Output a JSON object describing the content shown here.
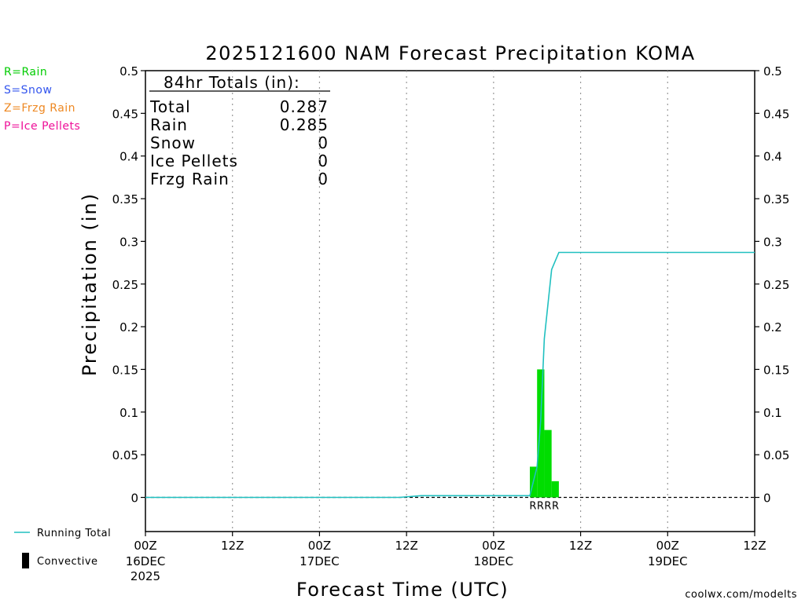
{
  "chart_data": {
    "type": "bar",
    "title": "2025121600 NAM Forecast Precipitation KOMA",
    "xlabel": "Forecast Time (UTC)",
    "ylabel": "Precipitation (in)",
    "ylim": [
      -0.04,
      0.5
    ],
    "yticks": [
      0,
      0.05,
      0.1,
      0.15,
      0.2,
      0.25,
      0.3,
      0.35,
      0.4,
      0.45,
      0.5
    ],
    "ytick_labels": [
      "0",
      "0.05",
      "0.1",
      "0.15",
      "0.2",
      "0.25",
      "0.3",
      "0.35",
      "0.4",
      "0.45",
      "0.5"
    ],
    "xlim_hours": [
      0,
      84
    ],
    "x_ticks": [
      {
        "hour": 0,
        "label": "00Z",
        "sub": "16DEC",
        "sub2": "2025"
      },
      {
        "hour": 12,
        "label": "12Z",
        "sub": "",
        "sub2": ""
      },
      {
        "hour": 24,
        "label": "00Z",
        "sub": "17DEC",
        "sub2": ""
      },
      {
        "hour": 36,
        "label": "12Z",
        "sub": "",
        "sub2": ""
      },
      {
        "hour": 48,
        "label": "00Z",
        "sub": "18DEC",
        "sub2": ""
      },
      {
        "hour": 60,
        "label": "12Z",
        "sub": "",
        "sub2": ""
      },
      {
        "hour": 72,
        "label": "00Z",
        "sub": "19DEC",
        "sub2": ""
      },
      {
        "hour": 84,
        "label": "12Z",
        "sub": "",
        "sub2": ""
      }
    ],
    "grid_hours": [
      12,
      24,
      36,
      48,
      60,
      72
    ],
    "bar_width_hours": 1,
    "bars": [
      {
        "hour": 53.5,
        "value": 0.036,
        "type": "R"
      },
      {
        "hour": 54.5,
        "value": 0.15,
        "type": "R"
      },
      {
        "hour": 55.5,
        "value": 0.079,
        "type": "R"
      },
      {
        "hour": 56.5,
        "value": 0.019,
        "type": "R"
      }
    ],
    "precip_type_label": "RRRR",
    "series": [
      {
        "name": "Running Total",
        "color": "#20c0c0",
        "points": [
          [
            0,
            0
          ],
          [
            35,
            0
          ],
          [
            38,
            0.002
          ],
          [
            53,
            0.002
          ],
          [
            54,
            0.036
          ],
          [
            54.5,
            0.09
          ],
          [
            55,
            0.186
          ],
          [
            56,
            0.267
          ],
          [
            57,
            0.287
          ],
          [
            84,
            0.287
          ]
        ]
      }
    ],
    "totals": {
      "header": "84hr Totals (in):",
      "rows": [
        {
          "label": "Total",
          "value": "0.287"
        },
        {
          "label": "Rain",
          "value": "0.285"
        },
        {
          "label": "Snow",
          "value": "0"
        },
        {
          "label": "Ice Pellets",
          "value": "0"
        },
        {
          "label": "Frzg Rain",
          "value": "0"
        }
      ]
    },
    "type_legend": [
      {
        "text": "R=Rain",
        "color": "#00cc00"
      },
      {
        "text": "S=Snow",
        "color": "#3355ee"
      },
      {
        "text": "Z=Frzg Rain",
        "color": "#ee8822"
      },
      {
        "text": "P=Ice Pellets",
        "color": "#ee1199"
      }
    ],
    "line_legend": [
      {
        "text": "Running Total",
        "kind": "line",
        "color": "#20c0c0"
      },
      {
        "text": "Convective",
        "kind": "block",
        "color": "#000000"
      }
    ],
    "bar_color": "#00dd00",
    "credit": "coolwx.com/modelts"
  }
}
